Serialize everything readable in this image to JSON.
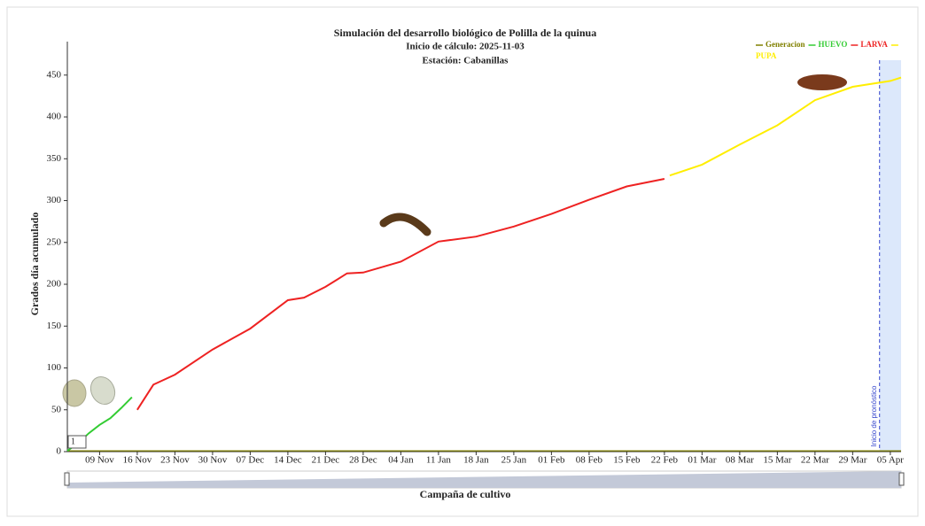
{
  "chart_data": {
    "type": "line",
    "title": "Simulación del desarrollo biológico de Polilla de la quinua",
    "subtitle": "Inicio de cálculo: 2025-11-03",
    "station": "Estación: Cabanillas",
    "y_label": "Grados día acumulado",
    "x_label": "Campaña de cultivo",
    "xlim": [
      "03 Nov",
      "07 Apr"
    ],
    "xticks": [
      "09 Nov",
      "16 Nov",
      "23 Nov",
      "30 Nov",
      "07 Dec",
      "14 Dec",
      "21 Dec",
      "28 Dec",
      "04 Jan",
      "11 Jan",
      "18 Jan",
      "25 Jan",
      "01 Feb",
      "08 Feb",
      "15 Feb",
      "22 Feb",
      "01 Mar",
      "08 Mar",
      "15 Mar",
      "22 Mar",
      "29 Mar",
      "05 Apr"
    ],
    "ylim": [
      0,
      490
    ],
    "yticks": [
      0,
      50,
      100,
      150,
      200,
      250,
      300,
      350,
      400,
      450
    ],
    "grid": false,
    "legend": "top-right",
    "generation_label": "1",
    "forecast_start": "03 Apr",
    "forecast_label": "Inicio de pronóstico",
    "series": [
      {
        "name": "Generacion",
        "color": "#808000",
        "x": [
          "03 Nov",
          "07 Apr"
        ],
        "values": [
          1,
          1
        ]
      },
      {
        "name": "HUEVO",
        "color": "#33cc33",
        "x": [
          "03 Nov",
          "05 Nov",
          "07 Nov",
          "09 Nov",
          "11 Nov",
          "13 Nov",
          "15 Nov"
        ],
        "values": [
          1,
          10,
          22,
          32,
          40,
          52,
          65
        ]
      },
      {
        "name": "LARVA",
        "color": "#ee2222",
        "x": [
          "16 Nov",
          "19 Nov",
          "23 Nov",
          "30 Nov",
          "07 Dec",
          "14 Dec",
          "17 Dec",
          "21 Dec",
          "25 Dec",
          "28 Dec",
          "04 Jan",
          "11 Jan",
          "18 Jan",
          "25 Jan",
          "01 Feb",
          "08 Feb",
          "15 Feb",
          "22 Feb"
        ],
        "values": [
          50,
          80,
          92,
          122,
          147,
          181,
          184,
          197,
          213,
          214,
          227,
          251,
          257,
          269,
          284,
          301,
          317,
          326
        ]
      },
      {
        "name": "PUPA",
        "color": "#ffee00",
        "x": [
          "23 Feb",
          "01 Mar",
          "08 Mar",
          "15 Mar",
          "22 Mar",
          "29 Mar",
          "05 Apr",
          "07 Apr"
        ],
        "values": [
          330,
          343,
          367,
          390,
          420,
          436,
          443,
          447
        ]
      }
    ]
  }
}
